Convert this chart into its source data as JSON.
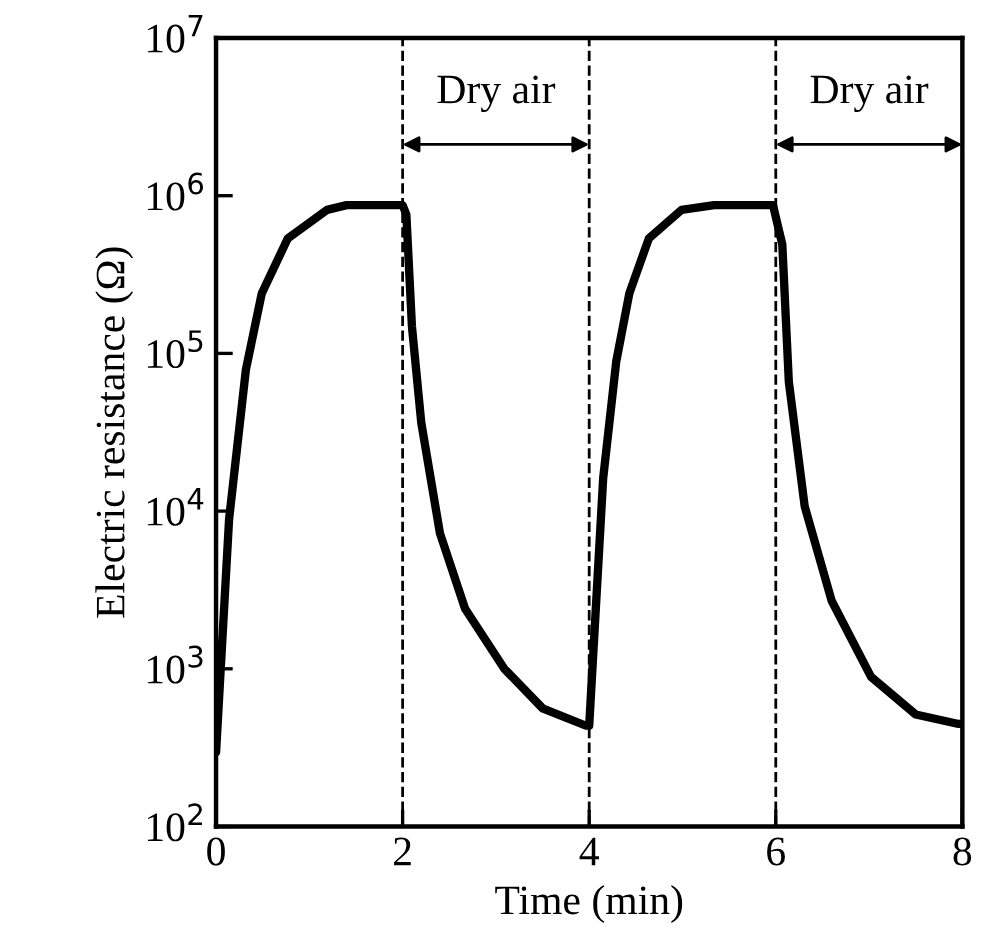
{
  "chart_data": {
    "type": "line",
    "xlabel": "Time (min)",
    "ylabel": "Electric resistance (Ω)",
    "log": "y",
    "grid": false,
    "legend": false,
    "marker": "none",
    "line_style": "solid",
    "xlim": [
      0,
      8
    ],
    "xticks": [
      0,
      2,
      4,
      6,
      8
    ],
    "ylim": [
      100,
      10000000
    ],
    "yticks": [
      {
        "value": 100,
        "label": "10$^{2}$"
      },
      {
        "value": 1000,
        "label": "10$^{3}$"
      },
      {
        "value": 10000,
        "label": "10$^{4}$"
      },
      {
        "value": 100000,
        "label": "10$^{5}$"
      },
      {
        "value": 1000000,
        "label": "10$^{6}$"
      },
      {
        "value": 10000000,
        "label": "10$^{7}$"
      }
    ],
    "series": [
      {
        "color": "#000000",
        "x": [
          0,
          0.14,
          0.32,
          0.49,
          0.77,
          1.19,
          1.4,
          2.0,
          2.04,
          2.1,
          2.2,
          2.4,
          2.67,
          3.09,
          3.5,
          3.96,
          4.0,
          4.15,
          4.29,
          4.43,
          4.64,
          4.99,
          5.34,
          5.97,
          6.07,
          6.14,
          6.31,
          6.6,
          7.02,
          7.5,
          7.96,
          8.0
        ],
        "values": [
          295,
          8900,
          79000,
          240000,
          537000,
          813000,
          871000,
          871000,
          759000,
          148000,
          36300,
          7240,
          2400,
          1000,
          562,
          437,
          437,
          16200,
          89000,
          240000,
          537000,
          813000,
          871000,
          871000,
          490000,
          66000,
          10700,
          2690,
          891,
          513,
          447,
          447
        ]
      }
    ],
    "ref_lines": [
      {
        "axis": "x",
        "value": 2,
        "line_style": "dashed",
        "color": "#000000"
      },
      {
        "axis": "x",
        "value": 4,
        "line_style": "dashed",
        "color": "#000000"
      },
      {
        "axis": "x",
        "value": 6,
        "line_style": "dashed",
        "color": "#000000"
      }
    ],
    "annotations": [
      "Dry air",
      "Dry air"
    ]
  }
}
